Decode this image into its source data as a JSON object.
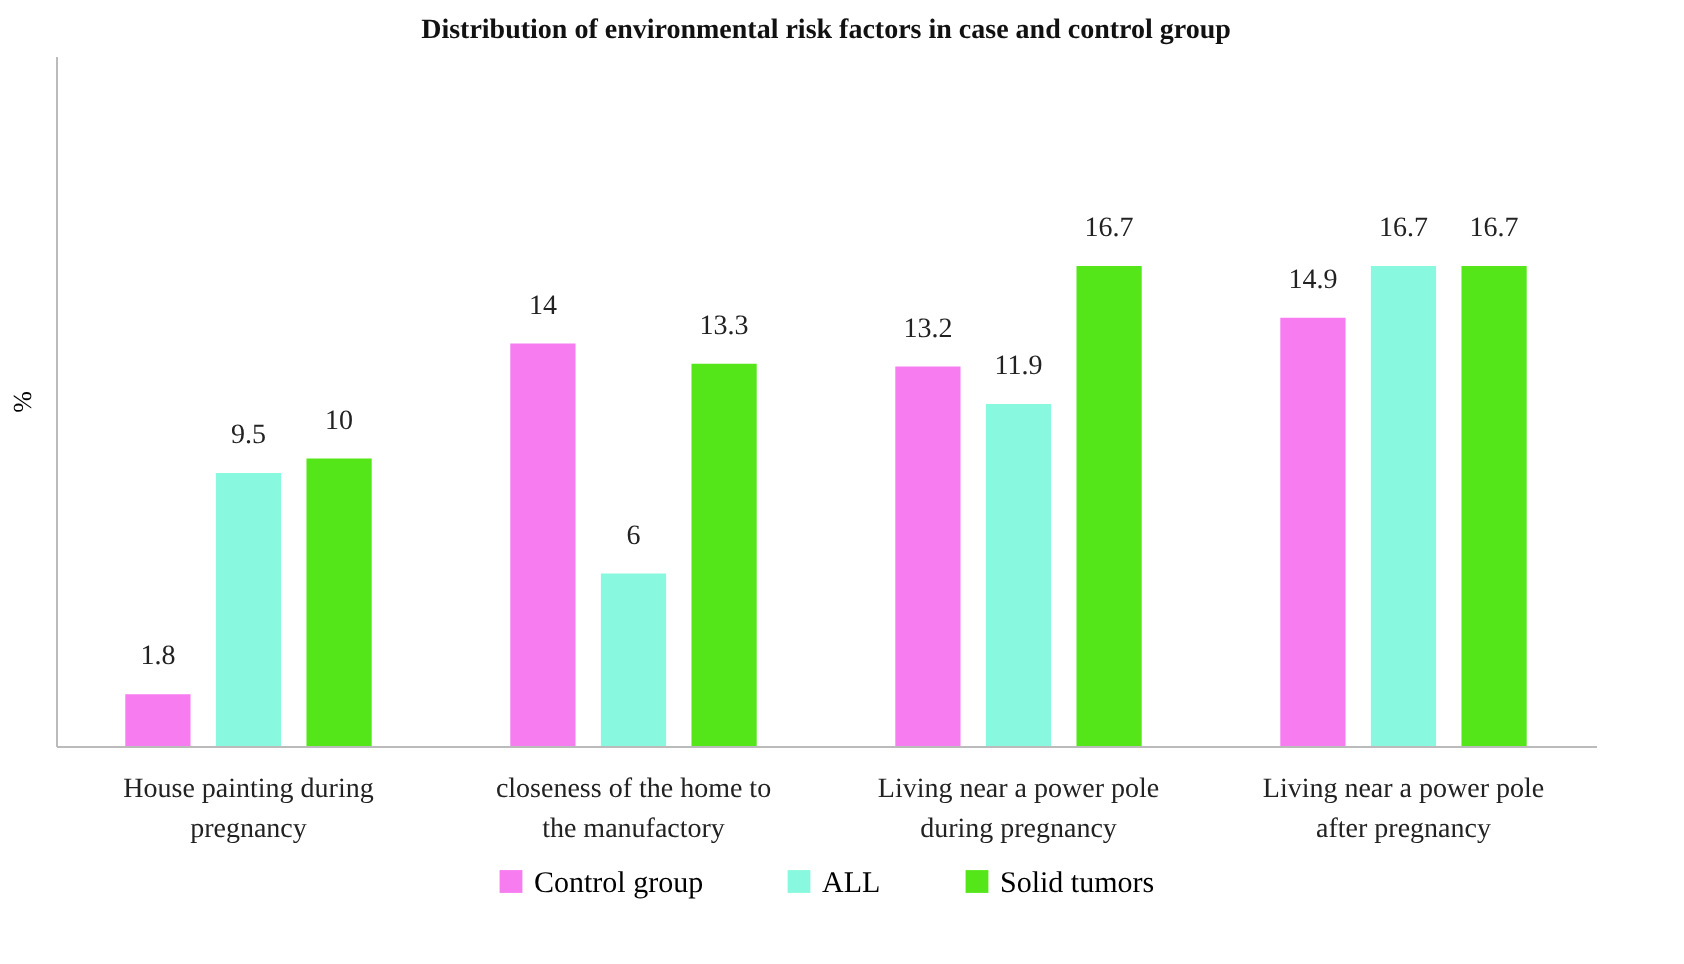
{
  "chart_data": {
    "type": "bar",
    "title": "Distribution of environmental risk factors in case and control group",
    "ylabel": "%",
    "categories": [
      "House painting during pregnancy",
      "closeness of the home to the manufactory",
      "Living near a power pole during pregnancy",
      "Living near a power pole after pregnancy"
    ],
    "series": [
      {
        "name": "Control group",
        "color": "#f77cf0",
        "values": [
          1.8,
          14,
          13.2,
          14.9
        ]
      },
      {
        "name": "ALL",
        "color": "#88f9de",
        "values": [
          9.5,
          6,
          11.9,
          16.7
        ]
      },
      {
        "name": "Solid tumors",
        "color": "#55e61a",
        "values": [
          10,
          13.3,
          16.7,
          16.7
        ]
      }
    ],
    "ylim": [
      0,
      24
    ],
    "data_labels": true,
    "legend": "bottom"
  }
}
